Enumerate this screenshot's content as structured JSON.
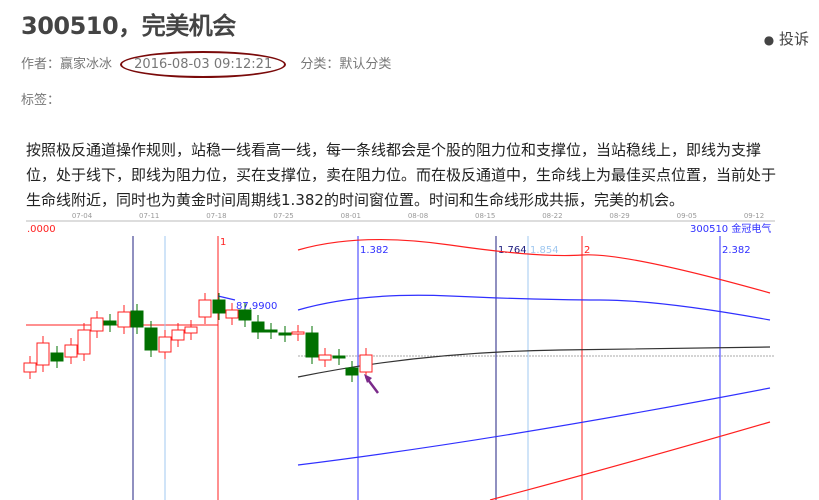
{
  "article": {
    "title": "300510，完美机会",
    "author_label": "作者：赢家冰冰",
    "date": "2016-08-03 09:12:21",
    "category_label": "分类：默认分类",
    "tags_label": "标签：",
    "report_label": "投诉",
    "body": "按照极反通道操作规则，站稳一线看高一线，每一条线都会是个股的阻力位和支撑位，当站稳线上，即线为支撑位，处于线下，即线为阻力位，买在支撑位，卖在阻力位。而在极反通道中，生命线上为最佳买点位置，当前处于生命线附近，同时也为黄金时间周期线1.382的时间窗位置。时间和生命线形成共振，完美的机会。"
  },
  "chart": {
    "stock_label": "300510 金冠电气",
    "price_left": ".0000",
    "price_label": "87.9900",
    "dates": [
      "07-04",
      "07-11",
      "07-18",
      "07-25",
      "08-01",
      "08-08",
      "08-15",
      "08-22",
      "08-29",
      "09-05",
      "09-12"
    ],
    "cycle_labels": [
      "1",
      "1.382",
      "1.764",
      "1.854",
      "2",
      "2.382"
    ],
    "colors": {
      "up": "#ff2020",
      "down": "#007000",
      "blue": "#3030ff",
      "navy": "#202080"
    }
  }
}
